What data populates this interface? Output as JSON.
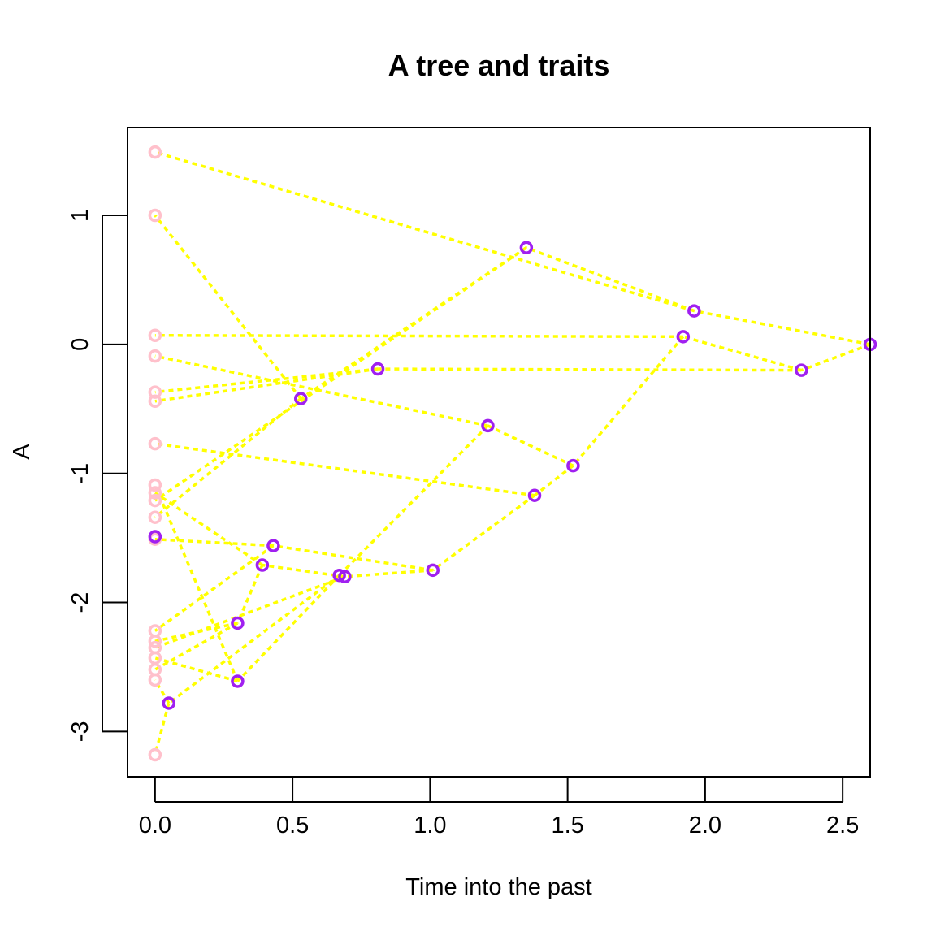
{
  "chart_data": {
    "type": "scatter",
    "title": "A tree and traits",
    "xlabel": "Time into the past",
    "ylabel": "A",
    "xlim": [
      -0.1,
      2.6
    ],
    "ylim": [
      -3.35,
      1.68
    ],
    "xticks": [
      0.0,
      0.5,
      1.0,
      1.5,
      2.0,
      2.5
    ],
    "xtick_labels": [
      "0.0",
      "0.5",
      "1.0",
      "1.5",
      "2.0",
      "2.5"
    ],
    "yticks": [
      -3,
      -2,
      -1,
      0,
      1
    ],
    "ytick_labels": [
      "-3",
      "-2",
      "-1",
      "0",
      "1"
    ],
    "grid": false,
    "colors": {
      "tips": "#ffc0cb",
      "nodes": "#a020f0",
      "branches": "#ffff00",
      "axes": "#000000"
    },
    "tips": [
      {
        "x": 0,
        "y": 1.49
      },
      {
        "x": 0,
        "y": 1.0
      },
      {
        "x": 0,
        "y": 0.07
      },
      {
        "x": 0,
        "y": -0.09
      },
      {
        "x": 0,
        "y": -0.37
      },
      {
        "x": 0,
        "y": -0.44
      },
      {
        "x": 0,
        "y": -0.77
      },
      {
        "x": 0,
        "y": -1.09
      },
      {
        "x": 0,
        "y": -1.15
      },
      {
        "x": 0,
        "y": -1.21
      },
      {
        "x": 0,
        "y": -1.34
      },
      {
        "x": 0,
        "y": -1.51
      },
      {
        "x": 0,
        "y": -2.22
      },
      {
        "x": 0,
        "y": -2.3
      },
      {
        "x": 0,
        "y": -2.35
      },
      {
        "x": 0,
        "y": -2.43
      },
      {
        "x": 0,
        "y": -2.52
      },
      {
        "x": 0,
        "y": -2.6
      },
      {
        "x": 0,
        "y": -3.18
      }
    ],
    "nodes": [
      {
        "x": 2.6,
        "y": 0.0
      },
      {
        "x": 1.96,
        "y": 0.26
      },
      {
        "x": 2.35,
        "y": -0.2
      },
      {
        "x": 1.92,
        "y": 0.06
      },
      {
        "x": 1.35,
        "y": 0.75
      },
      {
        "x": 0.81,
        "y": -0.19
      },
      {
        "x": 0.53,
        "y": -0.42
      },
      {
        "x": 1.21,
        "y": -0.63
      },
      {
        "x": 1.52,
        "y": -0.94
      },
      {
        "x": 1.38,
        "y": -1.17
      },
      {
        "x": 1.01,
        "y": -1.75
      },
      {
        "x": 0.67,
        "y": -1.79
      },
      {
        "x": 0.69,
        "y": -1.8
      },
      {
        "x": 0.43,
        "y": -1.56
      },
      {
        "x": 0.39,
        "y": -1.71
      },
      {
        "x": 0.3,
        "y": -2.16
      },
      {
        "x": 0.3,
        "y": -2.61
      },
      {
        "x": 0.05,
        "y": -2.78
      },
      {
        "x": 0.0,
        "y": -1.49
      }
    ],
    "branches": [
      {
        "from": [
          2.6,
          0.0
        ],
        "to": [
          1.96,
          0.26
        ]
      },
      {
        "from": [
          2.6,
          0.0
        ],
        "to": [
          2.35,
          -0.2
        ]
      },
      {
        "from": [
          1.96,
          0.26
        ],
        "to": [
          1.35,
          0.75
        ]
      },
      {
        "from": [
          1.96,
          0.26
        ],
        "to": [
          0,
          1.49
        ]
      },
      {
        "from": [
          2.35,
          -0.2
        ],
        "to": [
          1.92,
          0.06
        ]
      },
      {
        "from": [
          2.35,
          -0.2
        ],
        "to": [
          0.81,
          -0.19
        ]
      },
      {
        "from": [
          1.92,
          0.06
        ],
        "to": [
          0,
          0.07
        ]
      },
      {
        "from": [
          1.92,
          0.06
        ],
        "to": [
          1.52,
          -0.94
        ]
      },
      {
        "from": [
          1.35,
          0.75
        ],
        "to": [
          0,
          -1.21
        ]
      },
      {
        "from": [
          1.35,
          0.75
        ],
        "to": [
          0.53,
          -0.42
        ]
      },
      {
        "from": [
          0.81,
          -0.19
        ],
        "to": [
          0,
          -0.37
        ]
      },
      {
        "from": [
          0.81,
          -0.19
        ],
        "to": [
          0,
          -0.44
        ]
      },
      {
        "from": [
          0.53,
          -0.42
        ],
        "to": [
          0,
          1.0
        ]
      },
      {
        "from": [
          0.53,
          -0.42
        ],
        "to": [
          0,
          -1.34
        ]
      },
      {
        "from": [
          1.52,
          -0.94
        ],
        "to": [
          1.21,
          -0.63
        ]
      },
      {
        "from": [
          1.52,
          -0.94
        ],
        "to": [
          1.38,
          -1.17
        ]
      },
      {
        "from": [
          1.21,
          -0.63
        ],
        "to": [
          0,
          -0.09
        ]
      },
      {
        "from": [
          1.21,
          -0.63
        ],
        "to": [
          0.67,
          -1.79
        ]
      },
      {
        "from": [
          1.38,
          -1.17
        ],
        "to": [
          0,
          -0.77
        ]
      },
      {
        "from": [
          1.38,
          -1.17
        ],
        "to": [
          1.01,
          -1.75
        ]
      },
      {
        "from": [
          1.01,
          -1.75
        ],
        "to": [
          0.43,
          -1.56
        ]
      },
      {
        "from": [
          1.01,
          -1.75
        ],
        "to": [
          0.69,
          -1.8
        ]
      },
      {
        "from": [
          0.43,
          -1.56
        ],
        "to": [
          0,
          -1.51
        ]
      },
      {
        "from": [
          0.43,
          -1.56
        ],
        "to": [
          0,
          -2.22
        ]
      },
      {
        "from": [
          0.69,
          -1.8
        ],
        "to": [
          0.39,
          -1.71
        ]
      },
      {
        "from": [
          0.69,
          -1.8
        ],
        "to": [
          0,
          -2.35
        ]
      },
      {
        "from": [
          0.39,
          -1.71
        ],
        "to": [
          0,
          -1.15
        ]
      },
      {
        "from": [
          0.39,
          -1.71
        ],
        "to": [
          0.3,
          -2.16
        ]
      },
      {
        "from": [
          0.3,
          -2.16
        ],
        "to": [
          0,
          -2.3
        ]
      },
      {
        "from": [
          0.3,
          -2.16
        ],
        "to": [
          0,
          -2.52
        ]
      },
      {
        "from": [
          0.67,
          -1.79
        ],
        "to": [
          0.3,
          -2.61
        ]
      },
      {
        "from": [
          0.67,
          -1.79
        ],
        "to": [
          0.05,
          -2.78
        ]
      },
      {
        "from": [
          0.3,
          -2.61
        ],
        "to": [
          0,
          -1.09
        ]
      },
      {
        "from": [
          0.3,
          -2.61
        ],
        "to": [
          0,
          -2.43
        ]
      },
      {
        "from": [
          0.05,
          -2.78
        ],
        "to": [
          0,
          -2.6
        ]
      },
      {
        "from": [
          0.05,
          -2.78
        ],
        "to": [
          0,
          -3.18
        ]
      }
    ]
  }
}
